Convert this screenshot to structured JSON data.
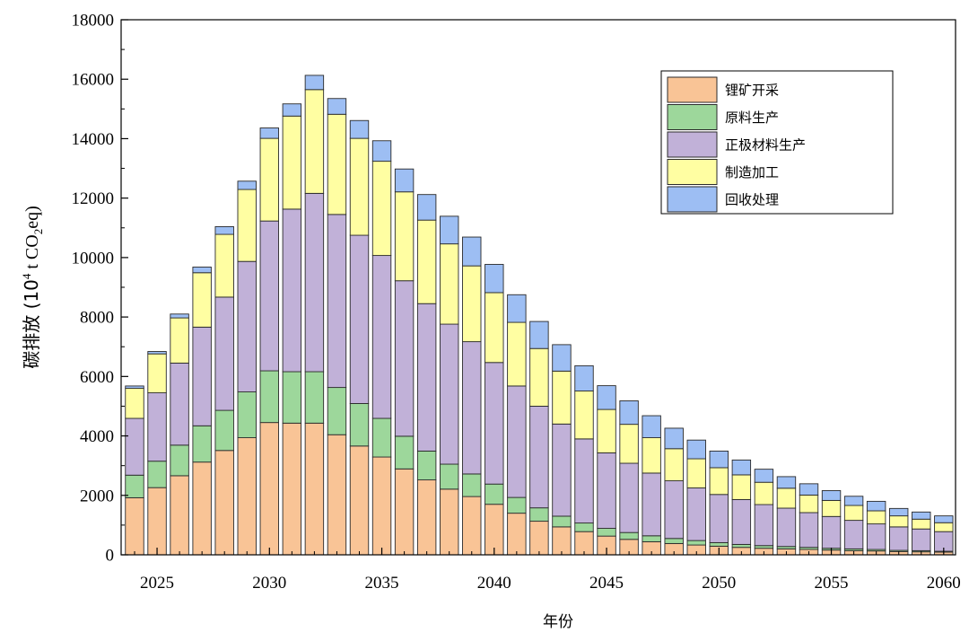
{
  "chart_data": {
    "type": "bar",
    "stacked": true,
    "x": [
      2024,
      2025,
      2026,
      2027,
      2028,
      2029,
      2030,
      2031,
      2032,
      2033,
      2034,
      2035,
      2036,
      2037,
      2038,
      2039,
      2040,
      2041,
      2042,
      2043,
      2044,
      2045,
      2046,
      2047,
      2048,
      2049,
      2050,
      2051,
      2052,
      2053,
      2054,
      2055,
      2056,
      2057,
      2058,
      2059,
      2060
    ],
    "xlabel": "年份",
    "ylabel_main": "碳排放 (10",
    "ylabel_sup": "4",
    "ylabel_mid": " t CO",
    "ylabel_sub": "2",
    "ylabel_end": "eq)",
    "ylim": [
      0,
      18000
    ],
    "yticks": [
      0,
      2000,
      4000,
      6000,
      8000,
      10000,
      12000,
      14000,
      16000,
      18000
    ],
    "xticks": [
      2025,
      2030,
      2035,
      2040,
      2045,
      2050,
      2055,
      2060
    ],
    "legend_position": "top-right",
    "grid": false,
    "series": [
      {
        "name": "锂矿开采",
        "color": "#f9c496",
        "values": [
          1920,
          2260,
          2660,
          3120,
          3510,
          3940,
          4450,
          4430,
          4430,
          4040,
          3660,
          3290,
          2890,
          2520,
          2210,
          1960,
          1700,
          1400,
          1130,
          940,
          780,
          630,
          520,
          440,
          380,
          330,
          290,
          250,
          220,
          200,
          180,
          160,
          140,
          130,
          110,
          100,
          90
        ]
      },
      {
        "name": "原料生产",
        "color": "#9dd79b",
        "values": [
          760,
          890,
          1030,
          1220,
          1350,
          1540,
          1740,
          1730,
          1730,
          1590,
          1430,
          1300,
          1100,
          970,
          840,
          760,
          680,
          530,
          450,
          360,
          290,
          260,
          230,
          200,
          170,
          150,
          120,
          100,
          90,
          80,
          70,
          60,
          60,
          50,
          40,
          40,
          30
        ]
      },
      {
        "name": "正极材料生产",
        "color": "#c1b1d8",
        "values": [
          1910,
          2300,
          2760,
          3320,
          3810,
          4390,
          5040,
          5470,
          6000,
          5820,
          5660,
          5480,
          5230,
          4960,
          4710,
          4450,
          4090,
          3750,
          3420,
          3100,
          2830,
          2540,
          2330,
          2110,
          1940,
          1770,
          1620,
          1510,
          1380,
          1290,
          1170,
          1070,
          960,
          860,
          790,
          730,
          660
        ]
      },
      {
        "name": "制造加工",
        "color": "#fffea2",
        "values": [
          1010,
          1310,
          1520,
          1830,
          2110,
          2420,
          2780,
          3130,
          3490,
          3370,
          3260,
          3170,
          2990,
          2810,
          2700,
          2550,
          2350,
          2140,
          1940,
          1780,
          1610,
          1460,
          1310,
          1190,
          1080,
          980,
          900,
          830,
          750,
          670,
          590,
          540,
          500,
          440,
          370,
          330,
          300
        ]
      },
      {
        "name": "回收处理",
        "color": "#9dbef3",
        "values": [
          80,
          80,
          130,
          190,
          260,
          280,
          350,
          410,
          480,
          530,
          600,
          690,
          770,
          860,
          930,
          970,
          950,
          930,
          910,
          890,
          850,
          800,
          790,
          740,
          690,
          630,
          560,
          500,
          440,
          390,
          380,
          330,
          310,
          320,
          250,
          240,
          230
        ]
      }
    ]
  }
}
